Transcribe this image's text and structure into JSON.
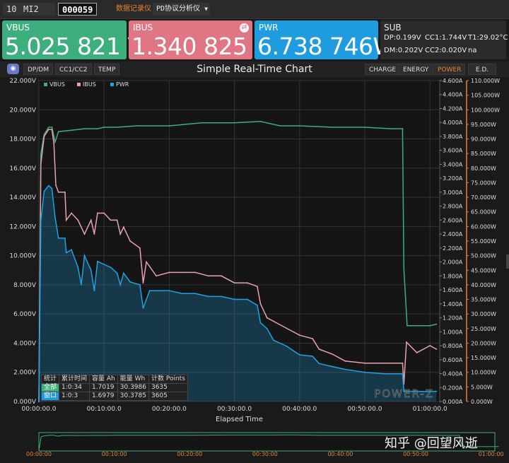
{
  "topbar": {
    "port": "10",
    "device": "MI2",
    "serial": "000059",
    "mode_link": "数据记录仪",
    "mode_select": "PD协议分析仪"
  },
  "metrics": {
    "vbus": {
      "label": "VBUS",
      "value": "5.025 821 V",
      "color": "#3dae7d"
    },
    "ibus": {
      "label": "IBUS",
      "value": "1.340 825 A",
      "color": "#e07683"
    },
    "pwr": {
      "label": "PWR",
      "value": "6.738 746W",
      "color": "#1f9be0"
    }
  },
  "sub": {
    "title": "SUB",
    "dp": "DP:0.199V",
    "cc1": "CC1:1.744V",
    "t1": "T1:29.02°C",
    "dm": "DM:0.202V",
    "cc2": "CC2:0.020V",
    "na": "na"
  },
  "nav": {
    "left_buttons": [
      "DP/DM",
      "CC1/CC2",
      "TEMP"
    ],
    "right_buttons": [
      "CHARGE",
      "ENERGY",
      "POWER",
      "E.D."
    ],
    "active": "POWER"
  },
  "chart_data": {
    "type": "line",
    "title": "Simple Real-Time Chart",
    "xlabel": "Elapsed Time",
    "x_ticks": [
      "00:00:00.0",
      "00:10:00.0",
      "00:20:00.0",
      "00:30:00.0",
      "00:40:00.0",
      "00:50:00.0",
      "01:00:00.0"
    ],
    "y_left_ticks": [
      "0.000V",
      "2.000V",
      "4.000V",
      "6.000V",
      "8.000V",
      "10.000V",
      "12.000V",
      "14.000V",
      "16.000V",
      "18.000V",
      "20.000V",
      "22.000V"
    ],
    "y_mid_ticks": [
      "0.000A",
      "0.200A",
      "0.400A",
      "0.600A",
      "0.800A",
      "1.000A",
      "1.200A",
      "1.400A",
      "1.600A",
      "1.800A",
      "2.000A",
      "2.200A",
      "2.400A",
      "2.600A",
      "2.800A",
      "3.000A",
      "3.200A",
      "3.400A",
      "3.600A",
      "3.800A",
      "4.000A",
      "4.200A",
      "4.400A",
      "4.600A"
    ],
    "y_right_ticks": [
      "0.000W",
      "5.000W",
      "10.000W",
      "15.000W",
      "20.000W",
      "25.000W",
      "30.000W",
      "35.000W",
      "40.000W",
      "45.000W",
      "50.000W",
      "55.000W",
      "60.000W",
      "65.000W",
      "70.000W",
      "75.000W",
      "80.000W",
      "85.000W",
      "90.000W",
      "95.000W",
      "100.000W",
      "105.000W",
      "110.000W"
    ],
    "xlim_min": [
      0,
      61.5
    ],
    "ylim_v": [
      0,
      22
    ],
    "ylim_a": [
      0,
      4.6
    ],
    "ylim_w": [
      0,
      110
    ],
    "series": [
      {
        "name": "VBUS",
        "color": "#3dae7d",
        "points": [
          [
            0,
            0
          ],
          [
            0.3,
            17
          ],
          [
            0.8,
            18.3
          ],
          [
            1.5,
            18.8
          ],
          [
            2,
            18.8
          ],
          [
            2.5,
            17.8
          ],
          [
            3,
            18.5
          ],
          [
            5,
            18.6
          ],
          [
            7,
            18.7
          ],
          [
            9,
            18.7
          ],
          [
            10,
            18.8
          ],
          [
            12,
            18.8
          ],
          [
            15,
            18.9
          ],
          [
            20,
            18.9
          ],
          [
            25,
            19.1
          ],
          [
            30,
            19.1
          ],
          [
            34,
            19.2
          ],
          [
            37,
            18.9
          ],
          [
            40,
            18.9
          ],
          [
            45,
            18.8
          ],
          [
            50,
            18.8
          ],
          [
            54,
            18.7
          ],
          [
            55.8,
            18.7
          ],
          [
            56,
            9.1
          ],
          [
            56.5,
            5.2
          ],
          [
            60,
            5.2
          ],
          [
            61,
            5.3
          ]
        ]
      },
      {
        "name": "IBUS",
        "color": "#e8a2ae",
        "points": [
          [
            0,
            0
          ],
          [
            0.3,
            3.4
          ],
          [
            0.8,
            3.8
          ],
          [
            1.5,
            3.9
          ],
          [
            2,
            3.9
          ],
          [
            2.3,
            3.7
          ],
          [
            2.6,
            3.1
          ],
          [
            3,
            3.0
          ],
          [
            4,
            3.0
          ],
          [
            4.2,
            2.6
          ],
          [
            5,
            2.7
          ],
          [
            6,
            2.6
          ],
          [
            7,
            2.4
          ],
          [
            8,
            2.6
          ],
          [
            8.5,
            2.4
          ],
          [
            9,
            2.7
          ],
          [
            10,
            2.7
          ],
          [
            11,
            2.6
          ],
          [
            12,
            2.6
          ],
          [
            12.5,
            2.4
          ],
          [
            13,
            2.5
          ],
          [
            14,
            2.3
          ],
          [
            15.5,
            2.2
          ],
          [
            16,
            1.7
          ],
          [
            16.5,
            2.0
          ],
          [
            18,
            1.8
          ],
          [
            20,
            1.85
          ],
          [
            22,
            1.85
          ],
          [
            24,
            1.85
          ],
          [
            26,
            1.8
          ],
          [
            28,
            1.8
          ],
          [
            30,
            1.7
          ],
          [
            32,
            1.7
          ],
          [
            33.5,
            1.65
          ],
          [
            34,
            1.4
          ],
          [
            35,
            1.2
          ],
          [
            36,
            1.15
          ],
          [
            38,
            1.05
          ],
          [
            40,
            0.95
          ],
          [
            42,
            0.9
          ],
          [
            43,
            0.75
          ],
          [
            45,
            0.68
          ],
          [
            47,
            0.58
          ],
          [
            50,
            0.55
          ],
          [
            53,
            0.55
          ],
          [
            55.8,
            0.55
          ],
          [
            56,
            0.25
          ],
          [
            56.4,
            0.85
          ],
          [
            58,
            0.7
          ],
          [
            60,
            0.8
          ],
          [
            61,
            0.75
          ]
        ]
      },
      {
        "name": "PWR",
        "color": "#1fa3e3",
        "points": [
          [
            0,
            0
          ],
          [
            0.3,
            62
          ],
          [
            0.8,
            72
          ],
          [
            1.5,
            74
          ],
          [
            2,
            73
          ],
          [
            2.5,
            63
          ],
          [
            3,
            56
          ],
          [
            4,
            56
          ],
          [
            4.2,
            51
          ],
          [
            5,
            52
          ],
          [
            6,
            46
          ],
          [
            6.5,
            40
          ],
          [
            7,
            50
          ],
          [
            8,
            45
          ],
          [
            8.5,
            38
          ],
          [
            9,
            48
          ],
          [
            10,
            47
          ],
          [
            11,
            46
          ],
          [
            12,
            44
          ],
          [
            12.5,
            40
          ],
          [
            13,
            44
          ],
          [
            14,
            41
          ],
          [
            15.5,
            40
          ],
          [
            16,
            32
          ],
          [
            17,
            38
          ],
          [
            18,
            38
          ],
          [
            20,
            38
          ],
          [
            22,
            37
          ],
          [
            24,
            37
          ],
          [
            26,
            36
          ],
          [
            28,
            36
          ],
          [
            30,
            35
          ],
          [
            32,
            35
          ],
          [
            33.5,
            33
          ],
          [
            34,
            27
          ],
          [
            35,
            25
          ],
          [
            36,
            21
          ],
          [
            38,
            19
          ],
          [
            40,
            16
          ],
          [
            42,
            15.5
          ],
          [
            43,
            13
          ],
          [
            45,
            12
          ],
          [
            47,
            11
          ],
          [
            50,
            10
          ],
          [
            53,
            9.5
          ],
          [
            55.8,
            9.5
          ],
          [
            56,
            3.5
          ],
          [
            58,
            3.5
          ],
          [
            60,
            3.4
          ],
          [
            61,
            3.5
          ]
        ]
      }
    ],
    "stats": {
      "headers": [
        "统计",
        "累计时间",
        "容量 Ah",
        "能量 Wh",
        "计数 Points"
      ],
      "rows": [
        [
          "全部",
          "1:0:34",
          "1.7019",
          "30.3986",
          "3635"
        ],
        [
          "窗口",
          "1:0:3",
          "1.6979",
          "30.3785",
          "3605"
        ]
      ]
    },
    "logo": "POWER-Z",
    "mini_x_ticks": [
      "00:00:00",
      "00:10:00",
      "00:20:00",
      "00:30:00",
      "00:40:00",
      "00:50:00",
      "01:00:00"
    ]
  },
  "watermark": "知乎 @回望风逝"
}
